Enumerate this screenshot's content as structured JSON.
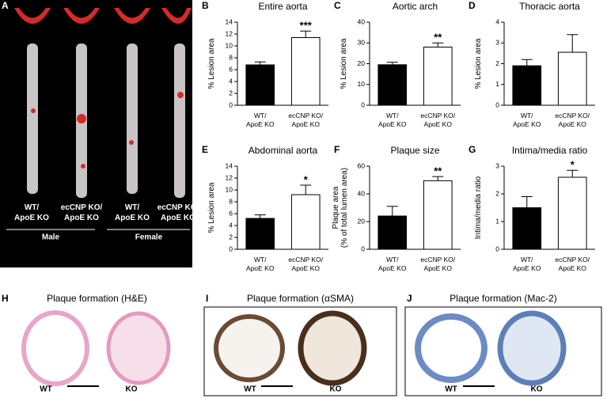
{
  "panel_a": {
    "label": "A",
    "samples": [
      "WT/\nApoE KO",
      "ecCNP KO/\nApoE KO",
      "WT/\nApoE KO",
      "ecCNP KO/\nApoE KO"
    ],
    "groups": [
      "Male",
      "Female"
    ]
  },
  "chart_data": [
    {
      "panel": "B",
      "type": "bar",
      "title": "Entire aorta",
      "ylabel": "% Lesion area",
      "categories": [
        "WT/\nApoE KO",
        "ecCNP KO/\nApoE KO"
      ],
      "values": [
        6.8,
        11.4
      ],
      "errors": [
        0.5,
        1.1
      ],
      "colors": [
        "#000000",
        "#ffffff"
      ],
      "annotation": "***",
      "ylim": [
        0,
        14
      ],
      "yticks": [
        0,
        2,
        4,
        6,
        8,
        10,
        12,
        14
      ]
    },
    {
      "panel": "C",
      "type": "bar",
      "title": "Aortic arch",
      "ylabel": "% Lesion area",
      "categories": [
        "WT/\nApoE KO",
        "ecCNP KO/\nApoE KO"
      ],
      "values": [
        19.5,
        28
      ],
      "errors": [
        1.2,
        2
      ],
      "colors": [
        "#000000",
        "#ffffff"
      ],
      "annotation": "**",
      "ylim": [
        0,
        40
      ],
      "yticks": [
        0,
        10,
        20,
        30,
        40
      ]
    },
    {
      "panel": "D",
      "type": "bar",
      "title": "Thoracic aorta",
      "ylabel": "% Lesion area",
      "categories": [
        "WT/\nApoE KO",
        "ecCNP KO/\nApoE KO"
      ],
      "values": [
        1.9,
        2.55
      ],
      "errors": [
        0.3,
        0.85
      ],
      "colors": [
        "#000000",
        "#ffffff"
      ],
      "ylim": [
        0,
        4
      ],
      "yticks": [
        0,
        1,
        2,
        3,
        4
      ]
    },
    {
      "panel": "E",
      "type": "bar",
      "title": "Abdominal aorta",
      "ylabel": "% Lesion area",
      "categories": [
        "WT/\nApoE KO",
        "ecCNP KO/\nApoE KO"
      ],
      "values": [
        5.2,
        9.2
      ],
      "errors": [
        0.6,
        1.6
      ],
      "colors": [
        "#000000",
        "#ffffff"
      ],
      "annotation": "*",
      "ylim": [
        0,
        14
      ],
      "yticks": [
        0,
        2,
        4,
        6,
        8,
        10,
        12,
        14
      ]
    },
    {
      "panel": "F",
      "type": "bar",
      "title": "Plaque size",
      "ylabel": "Plaque area\n(% of total lumen area)",
      "categories": [
        "WT/\nApoE KO",
        "ecCNP KO/\nApoE KO"
      ],
      "values": [
        24,
        49.5
      ],
      "errors": [
        7,
        3
      ],
      "colors": [
        "#000000",
        "#ffffff"
      ],
      "annotation": "**",
      "ylim": [
        0,
        60
      ],
      "yticks": [
        0,
        20,
        40,
        60
      ]
    },
    {
      "panel": "G",
      "type": "bar",
      "title": "Intima/media ratio",
      "ylabel": "Intima/media ratio",
      "categories": [
        "WT/\nApoE KO",
        "ecCNP KO/\nApoE KO"
      ],
      "values": [
        1.5,
        2.6
      ],
      "errors": [
        0.4,
        0.25
      ],
      "colors": [
        "#000000",
        "#ffffff"
      ],
      "annotation": "*",
      "ylim": [
        0,
        3
      ],
      "yticks": [
        0,
        1,
        2,
        3
      ]
    }
  ],
  "histology": [
    {
      "panel": "H",
      "title": "Plaque formation (H&E)",
      "labels": [
        "WT",
        "KO"
      ]
    },
    {
      "panel": "I",
      "title": "Plaque formation (αSMA)",
      "labels": [
        "WT",
        "KO"
      ]
    },
    {
      "panel": "J",
      "title": "Plaque formation (Mac-2)",
      "labels": [
        "WT",
        "KO"
      ]
    }
  ]
}
